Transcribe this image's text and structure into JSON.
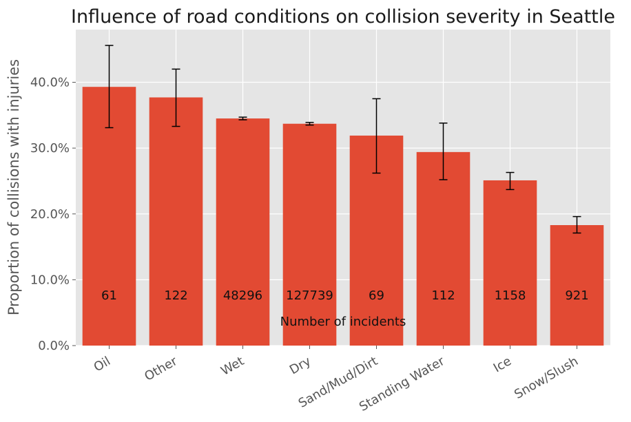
{
  "chart_data": {
    "type": "bar",
    "title": "Influence of road conditions on collision severity in Seattle",
    "xlabel": "",
    "ylabel": "Proportion of collisions with injuries",
    "categories": [
      "Oil",
      "Other",
      "Wet",
      "Dry",
      "Sand/Mud/Dirt",
      "Standing Water",
      "Ice",
      "Snow/Slush"
    ],
    "values": [
      0.393,
      0.377,
      0.345,
      0.337,
      0.319,
      0.294,
      0.251,
      0.183
    ],
    "error_low": [
      0.331,
      0.333,
      0.343,
      0.335,
      0.262,
      0.252,
      0.237,
      0.171
    ],
    "error_high": [
      0.456,
      0.42,
      0.347,
      0.339,
      0.375,
      0.338,
      0.263,
      0.196
    ],
    "counts": [
      "61",
      "122",
      "48296",
      "127739",
      "69",
      "112",
      "1158",
      "921"
    ],
    "counts_label": "Number of incidents",
    "ylim": [
      0,
      0.48
    ],
    "yticks": [
      0.0,
      0.1,
      0.2,
      0.3,
      0.4
    ],
    "ytick_labels": [
      "0.0%",
      "10.0%",
      "20.0%",
      "30.0%",
      "40.0%"
    ],
    "grid": true,
    "colors": {
      "bar": "#e24a33",
      "plot_bg": "#e5e5e5",
      "grid": "#ffffff",
      "error": "#000000"
    }
  }
}
